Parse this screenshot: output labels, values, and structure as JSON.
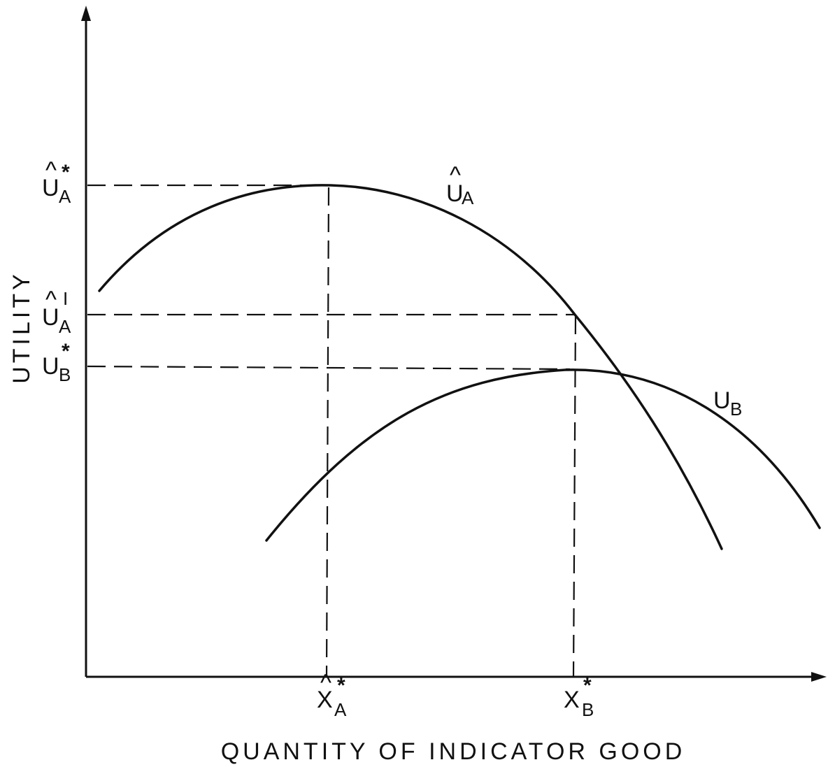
{
  "axes": {
    "y_title": "UTILITY",
    "x_title": "QUANTITY OF INDICATOR GOOD"
  },
  "y_labels": {
    "ua_star": {
      "base": "U",
      "hat": "^",
      "sub": "A",
      "sup": "*"
    },
    "ua_prime": {
      "base": "U",
      "hat": "^",
      "sub": "A",
      "sup": "I"
    },
    "ub_star": {
      "base": "U",
      "sub": "B",
      "sup": "*"
    }
  },
  "x_labels": {
    "xa_star": {
      "base": "X",
      "hat": "^",
      "sub": "A",
      "sup": "*"
    },
    "xb_star": {
      "base": "X",
      "sub": "B",
      "sup": "*"
    }
  },
  "curve_labels": {
    "ua": {
      "base": "U",
      "hat": "^",
      "sub": "A"
    },
    "ub": {
      "base": "U",
      "sub": "B"
    }
  }
}
